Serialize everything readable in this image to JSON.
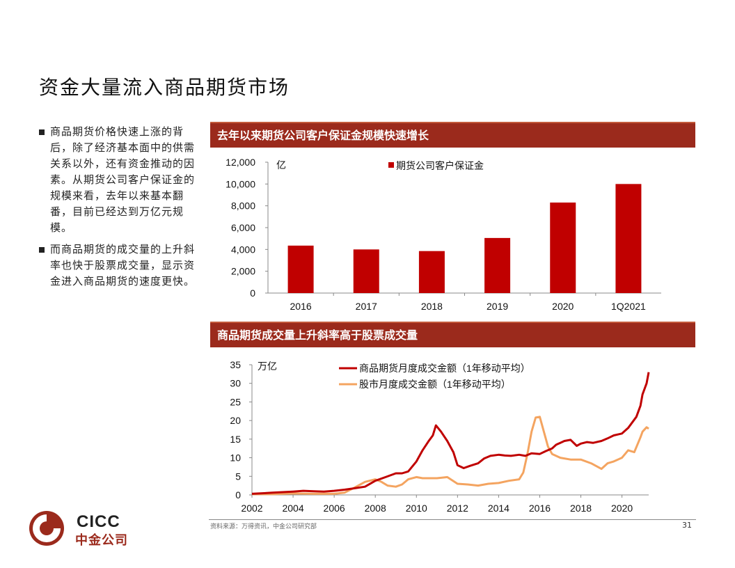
{
  "page": {
    "title": "资金大量流入商品期货市场",
    "bullets": [
      "商品期货价格快速上涨的背后，除了经济基本面中的供需关系以外，还有资金推动的因素。从期货公司客户保证金的规模来看，去年以来基本翻番，目前已经达到万亿元规模。",
      "而商品期货的成交量的上升斜率也快于股票成交量，显示资金进入商品期货的速度更快。"
    ],
    "source": "资料来源：万得资讯，中金公司研究部",
    "page_number": "31",
    "logo": {
      "en": "CICC",
      "cn": "中金公司"
    },
    "colors": {
      "header_bg": "#9b2a1c",
      "bar": "#c00000",
      "futures_line": "#c00000",
      "stock_line": "#f4a460"
    }
  },
  "chart_data": [
    {
      "type": "bar",
      "title": "去年以来期货公司客户保证金规模快速增长",
      "unit": "亿",
      "categories": [
        "2016",
        "2017",
        "2018",
        "2019",
        "2020",
        "1Q2021"
      ],
      "series": [
        {
          "name": "期货公司客户保证金",
          "values": [
            4350,
            4000,
            3850,
            5050,
            8300,
            10000
          ]
        }
      ],
      "ylim": [
        0,
        12000
      ],
      "yticks": [
        0,
        2000,
        4000,
        6000,
        8000,
        10000,
        12000
      ],
      "ytick_labels": [
        "0",
        "2,000",
        "4,000",
        "6,000",
        "8,000",
        "10,000",
        "12,000"
      ],
      "legend": "top-center"
    },
    {
      "type": "line",
      "title": "商品期货成交量上升斜率高于股票成交量",
      "unit": "万亿",
      "xlim": [
        2002,
        2021.3
      ],
      "ylim": [
        0,
        35
      ],
      "xticks": [
        2002,
        2004,
        2006,
        2008,
        2010,
        2012,
        2014,
        2016,
        2018,
        2020
      ],
      "yticks": [
        0,
        5,
        10,
        15,
        20,
        25,
        30,
        35
      ],
      "legend": "top-center",
      "series": [
        {
          "name": "商品期货月度成交金额（1年移动平均）",
          "x": [
            2002,
            2003,
            2004,
            2004.5,
            2005,
            2005.5,
            2006,
            2006.5,
            2007,
            2007.5,
            2008,
            2008.5,
            2009,
            2009.3,
            2009.6,
            2010,
            2010.3,
            2010.6,
            2010.8,
            2010.95,
            2011.2,
            2011.5,
            2011.8,
            2012,
            2012.3,
            2012.6,
            2013,
            2013.3,
            2013.6,
            2014,
            2014.3,
            2014.6,
            2015,
            2015.3,
            2015.6,
            2016,
            2016.3,
            2016.6,
            2016.8,
            2017,
            2017.2,
            2017.5,
            2017.8,
            2018,
            2018.3,
            2018.6,
            2019,
            2019.3,
            2019.6,
            2020,
            2020.3,
            2020.5,
            2020.7,
            2020.9,
            2021,
            2021.2,
            2021.3
          ],
          "values": [
            0.3,
            0.6,
            0.9,
            1.1,
            1.0,
            0.9,
            1.1,
            1.4,
            1.8,
            2.2,
            3.8,
            4.8,
            5.8,
            5.8,
            6.3,
            9.0,
            12.0,
            14.5,
            16.0,
            18.7,
            17.0,
            14.5,
            11.5,
            8.0,
            7.2,
            7.8,
            8.5,
            9.8,
            10.5,
            10.8,
            10.6,
            10.5,
            10.8,
            10.5,
            11.2,
            11.0,
            11.8,
            12.5,
            13.5,
            14.0,
            14.5,
            14.8,
            13.2,
            13.8,
            14.2,
            14.0,
            14.5,
            15.2,
            16.0,
            16.5,
            18.0,
            19.5,
            21.0,
            24.0,
            27.0,
            30.0,
            33.0
          ]
        },
        {
          "name": "股市月度成交金额（1年移动平均）",
          "x": [
            2002,
            2003,
            2004,
            2005,
            2006,
            2006.5,
            2007,
            2007.5,
            2008,
            2008.3,
            2008.6,
            2009,
            2009.3,
            2009.6,
            2010,
            2010.3,
            2010.6,
            2011,
            2011.5,
            2012,
            2012.5,
            2013,
            2013.5,
            2014,
            2014.5,
            2015,
            2015.2,
            2015.4,
            2015.6,
            2015.8,
            2016,
            2016.2,
            2016.4,
            2016.6,
            2017,
            2017.5,
            2018,
            2018.5,
            2019,
            2019.3,
            2019.6,
            2020,
            2020.3,
            2020.6,
            2020.9,
            2021,
            2021.2,
            2021.3
          ],
          "values": [
            0.2,
            0.2,
            0.4,
            0.3,
            0.3,
            0.6,
            2.0,
            3.5,
            4.2,
            3.5,
            2.5,
            2.2,
            2.8,
            4.2,
            4.8,
            4.5,
            4.5,
            4.5,
            4.8,
            3.0,
            2.8,
            2.5,
            3.0,
            3.2,
            3.8,
            4.2,
            6.0,
            11.0,
            17.0,
            20.8,
            21.0,
            17.0,
            13.0,
            11.0,
            10.0,
            9.5,
            9.5,
            8.5,
            7.0,
            8.5,
            9.0,
            10.0,
            12.0,
            11.5,
            15.5,
            17.0,
            18.2,
            17.8
          ]
        }
      ]
    }
  ]
}
